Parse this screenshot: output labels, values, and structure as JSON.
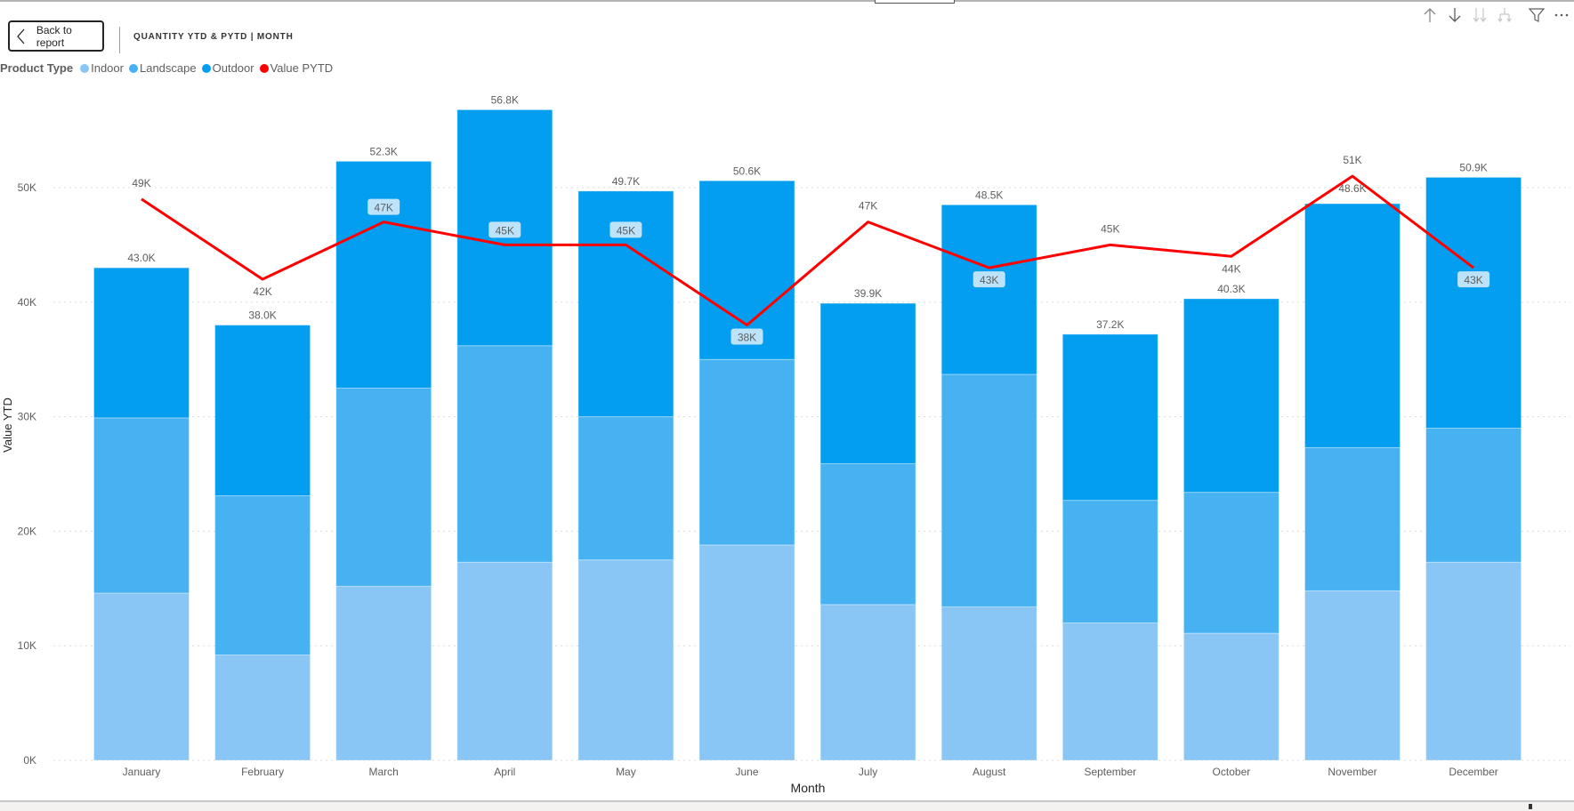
{
  "header": {
    "back_button_label": "Back to report",
    "visual_title": "QUANTITY YTD & PYTD | MONTH"
  },
  "toolbar": {
    "icons": [
      "drill-up-icon",
      "drill-down-icon",
      "expand-all-down-icon",
      "expand-hierarchy-icon",
      "filter-icon",
      "more-options-icon"
    ]
  },
  "legend": {
    "title": "Product Type",
    "items": [
      {
        "label": "Indoor",
        "color": "#8ac6f5"
      },
      {
        "label": "Landscape",
        "color": "#47b2f2"
      },
      {
        "label": "Outdoor",
        "color": "#039eef"
      },
      {
        "label": "Value PYTD",
        "color": "#ff0000"
      }
    ]
  },
  "chart_data": {
    "type": "bar",
    "subtype": "stacked column + line combo",
    "title": "QUANTITY YTD & PYTD | MONTH",
    "xlabel": "Month",
    "ylabel": "Value YTD",
    "ylim": [
      0,
      57000
    ],
    "yticks": [
      "0K",
      "10K",
      "20K",
      "30K",
      "40K",
      "50K"
    ],
    "ytick_values": [
      0,
      10000,
      20000,
      30000,
      40000,
      50000
    ],
    "grid": "horizontal dotted",
    "legend_position": "top-left",
    "categories": [
      "January",
      "February",
      "March",
      "April",
      "May",
      "June",
      "July",
      "August",
      "September",
      "October",
      "November",
      "December"
    ],
    "series": [
      {
        "name": "Indoor",
        "type": "bar",
        "color": "#8ac6f5",
        "values": [
          14600,
          9200,
          15200,
          17300,
          17500,
          18800,
          13600,
          13400,
          12000,
          11100,
          14800,
          17300
        ]
      },
      {
        "name": "Landscape",
        "type": "bar",
        "color": "#47b2f2",
        "values": [
          15300,
          13900,
          17300,
          18900,
          12500,
          16200,
          12300,
          20300,
          10700,
          12300,
          12500,
          11700
        ]
      },
      {
        "name": "Outdoor",
        "type": "bar",
        "color": "#039eef",
        "values": [
          13100,
          14900,
          19800,
          20600,
          19700,
          15600,
          14000,
          14800,
          14500,
          16900,
          21300,
          21900
        ]
      },
      {
        "name": "Value PYTD",
        "type": "line",
        "color": "#ff0000",
        "values": [
          49000,
          42000,
          47000,
          45000,
          45000,
          38000,
          47000,
          43000,
          45000,
          44000,
          51000,
          43000
        ]
      }
    ],
    "total_labels": [
      "43.0K",
      "38.0K",
      "52.3K",
      "56.8K",
      "49.7K",
      "50.6K",
      "39.9K",
      "48.5K",
      "37.2K",
      "40.3K",
      "48.6K",
      "50.9K"
    ],
    "line_labels": [
      "49K",
      "42K",
      "47K",
      "45K",
      "45K",
      "38K",
      "47K",
      "43K",
      "45K",
      "44K",
      "51K",
      "43K"
    ],
    "line_label_boxed": [
      false,
      false,
      true,
      true,
      true,
      true,
      false,
      true,
      false,
      false,
      false,
      true
    ]
  }
}
